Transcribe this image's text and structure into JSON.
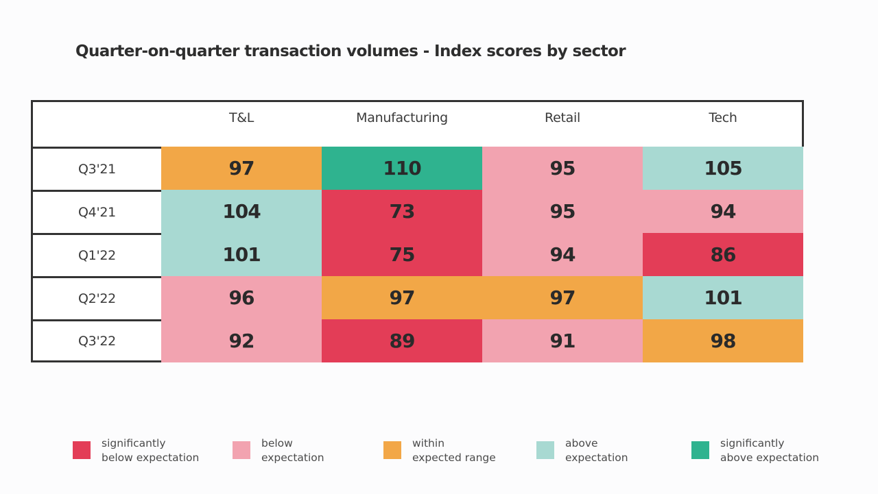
{
  "title": "Quarter-on-quarter transaction volumes - Index scores by sector",
  "chart_data": {
    "type": "heatmap",
    "title": "Quarter-on-quarter transaction volumes - Index scores by sector",
    "columns": [
      "T&L",
      "Manufacturing",
      "Retail",
      "Tech"
    ],
    "rows": [
      "Q3'21",
      "Q4'21",
      "Q1'22",
      "Q2'22",
      "Q3'22"
    ],
    "values": [
      [
        97,
        110,
        95,
        105
      ],
      [
        104,
        73,
        95,
        94
      ],
      [
        101,
        75,
        94,
        86
      ],
      [
        96,
        97,
        97,
        101
      ],
      [
        92,
        89,
        91,
        98
      ]
    ],
    "categories": [
      [
        "within",
        "sig_above",
        "below",
        "above"
      ],
      [
        "above",
        "sig_below",
        "below",
        "below"
      ],
      [
        "above",
        "sig_below",
        "below",
        "sig_below"
      ],
      [
        "below",
        "within",
        "within",
        "above"
      ],
      [
        "below",
        "sig_below",
        "below",
        "within"
      ]
    ],
    "legend": [
      {
        "key": "sig_below",
        "line1": "significantly",
        "line2": "below expectation",
        "color": "#e33d57"
      },
      {
        "key": "below",
        "line1": "below",
        "line2": "expectation",
        "color": "#f2a3b0"
      },
      {
        "key": "within",
        "line1": "within",
        "line2": "expected range",
        "color": "#f2a747"
      },
      {
        "key": "above",
        "line1": "above",
        "line2": "expectation",
        "color": "#a8d9d2"
      },
      {
        "key": "sig_above",
        "line1": "significantly",
        "line2": "above expectation",
        "color": "#2fb38f"
      }
    ],
    "legend_position": "bottom"
  }
}
